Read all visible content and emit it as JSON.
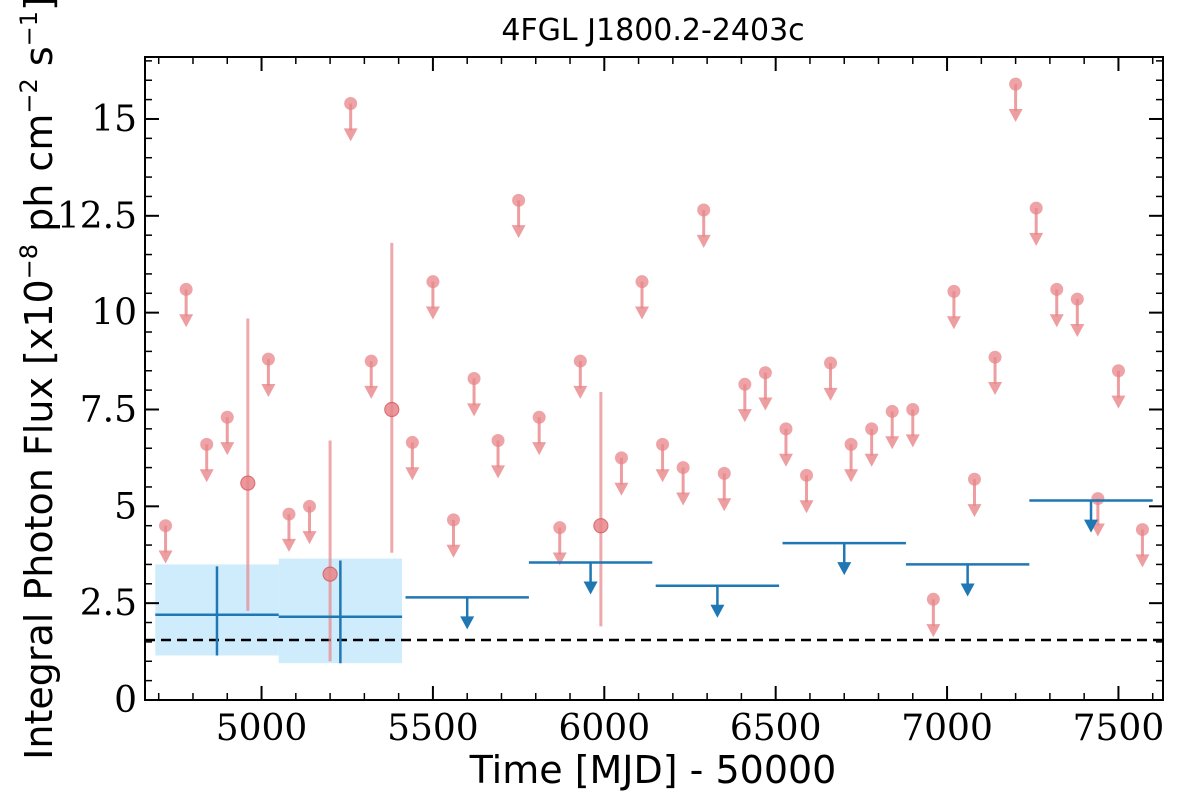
{
  "chart_data": {
    "type": "scatter",
    "title": "4FGL J1800.2-2403c",
    "xlabel": "Time [MJD] - 50000",
    "ylabel": "Integral Photon Flux [x10",
    "ylabel_exp1": "−8",
    "ylabel_mid": " ph cm",
    "ylabel_exp2": "−2",
    "ylabel_mid2": " s",
    "ylabel_exp3": "−1",
    "ylabel_end": "]",
    "xlim": [
      4660,
      7630
    ],
    "ylim": [
      0,
      16.6
    ],
    "x_ticks": [
      5000,
      5500,
      6000,
      6500,
      7000,
      7500
    ],
    "x_tick_labels": [
      "5000",
      "5500",
      "6000",
      "6500",
      "7000",
      "7500"
    ],
    "y_ticks": [
      0,
      2.5,
      5,
      7.5,
      10,
      12.5,
      15
    ],
    "y_tick_labels": [
      "0",
      "2.5",
      "5",
      "7.5",
      "10",
      "12.5",
      "15"
    ],
    "reference_line": 1.55,
    "colors": {
      "fine": "#e8868a",
      "coarse": "#1f77b4",
      "coarse_band": "#bfe6fb",
      "reference": "#000000"
    },
    "series": [
      {
        "style": "upper_limit",
        "color": "fine",
        "points": [
          {
            "x": 4720,
            "y": 4.5
          },
          {
            "x": 4780,
            "y": 10.6
          },
          {
            "x": 4840,
            "y": 6.6
          },
          {
            "x": 4900,
            "y": 7.3
          },
          {
            "x": 5020,
            "y": 8.8
          },
          {
            "x": 5080,
            "y": 4.8
          },
          {
            "x": 5140,
            "y": 5.0
          },
          {
            "x": 5260,
            "y": 15.4
          },
          {
            "x": 5320,
            "y": 8.75
          },
          {
            "x": 5440,
            "y": 6.65
          },
          {
            "x": 5500,
            "y": 10.8
          },
          {
            "x": 5560,
            "y": 4.65
          },
          {
            "x": 5620,
            "y": 8.3
          },
          {
            "x": 5690,
            "y": 6.7
          },
          {
            "x": 5750,
            "y": 12.9
          },
          {
            "x": 5810,
            "y": 7.3
          },
          {
            "x": 5870,
            "y": 4.45
          },
          {
            "x": 5930,
            "y": 8.75
          },
          {
            "x": 6050,
            "y": 6.25
          },
          {
            "x": 6110,
            "y": 10.8
          },
          {
            "x": 6170,
            "y": 6.6
          },
          {
            "x": 6230,
            "y": 6.0
          },
          {
            "x": 6290,
            "y": 12.65
          },
          {
            "x": 6350,
            "y": 5.85
          },
          {
            "x": 6410,
            "y": 8.15
          },
          {
            "x": 6470,
            "y": 8.45
          },
          {
            "x": 6530,
            "y": 7.0
          },
          {
            "x": 6590,
            "y": 5.8
          },
          {
            "x": 6660,
            "y": 8.7
          },
          {
            "x": 6720,
            "y": 6.6
          },
          {
            "x": 6780,
            "y": 7.0
          },
          {
            "x": 6840,
            "y": 7.45
          },
          {
            "x": 6900,
            "y": 7.5
          },
          {
            "x": 6960,
            "y": 2.6
          },
          {
            "x": 7020,
            "y": 10.55
          },
          {
            "x": 7080,
            "y": 5.7
          },
          {
            "x": 7140,
            "y": 8.85
          },
          {
            "x": 7200,
            "y": 15.9
          },
          {
            "x": 7260,
            "y": 12.7
          },
          {
            "x": 7320,
            "y": 10.6
          },
          {
            "x": 7380,
            "y": 10.35
          },
          {
            "x": 7440,
            "y": 5.2
          },
          {
            "x": 7500,
            "y": 8.5
          },
          {
            "x": 7570,
            "y": 4.4
          }
        ]
      },
      {
        "style": "detection",
        "color": "fine",
        "points": [
          {
            "x": 4960,
            "y": 5.6,
            "y_low": 2.3,
            "y_high": 9.85
          },
          {
            "x": 5200,
            "y": 3.25,
            "y_low": 1.0,
            "y_high": 6.7
          },
          {
            "x": 5380,
            "y": 7.5,
            "y_low": 3.8,
            "y_high": 11.8
          },
          {
            "x": 5990,
            "y": 4.5,
            "y_low": 1.9,
            "y_high": 7.95
          }
        ]
      },
      {
        "style": "binned_upper_limit",
        "color": "coarse",
        "points": [
          {
            "x0": 5420,
            "x1": 5780,
            "y": 2.65
          },
          {
            "x0": 5780,
            "x1": 6140,
            "y": 3.55
          },
          {
            "x0": 6150,
            "x1": 6510,
            "y": 2.95
          },
          {
            "x0": 6520,
            "x1": 6880,
            "y": 4.05
          },
          {
            "x0": 6880,
            "x1": 7240,
            "y": 3.5
          },
          {
            "x0": 7240,
            "x1": 7600,
            "y": 5.15
          }
        ]
      },
      {
        "style": "binned_detection",
        "color": "coarse",
        "points": [
          {
            "x0": 4690,
            "x1": 5050,
            "y": 2.2,
            "y_low": 1.15,
            "y_high": 3.45,
            "band_low": 1.15,
            "band_high": 3.5
          },
          {
            "x0": 5050,
            "x1": 5410,
            "y": 2.15,
            "y_low": 0.95,
            "y_high": 3.6,
            "band_low": 0.95,
            "band_high": 3.65
          }
        ]
      }
    ]
  }
}
